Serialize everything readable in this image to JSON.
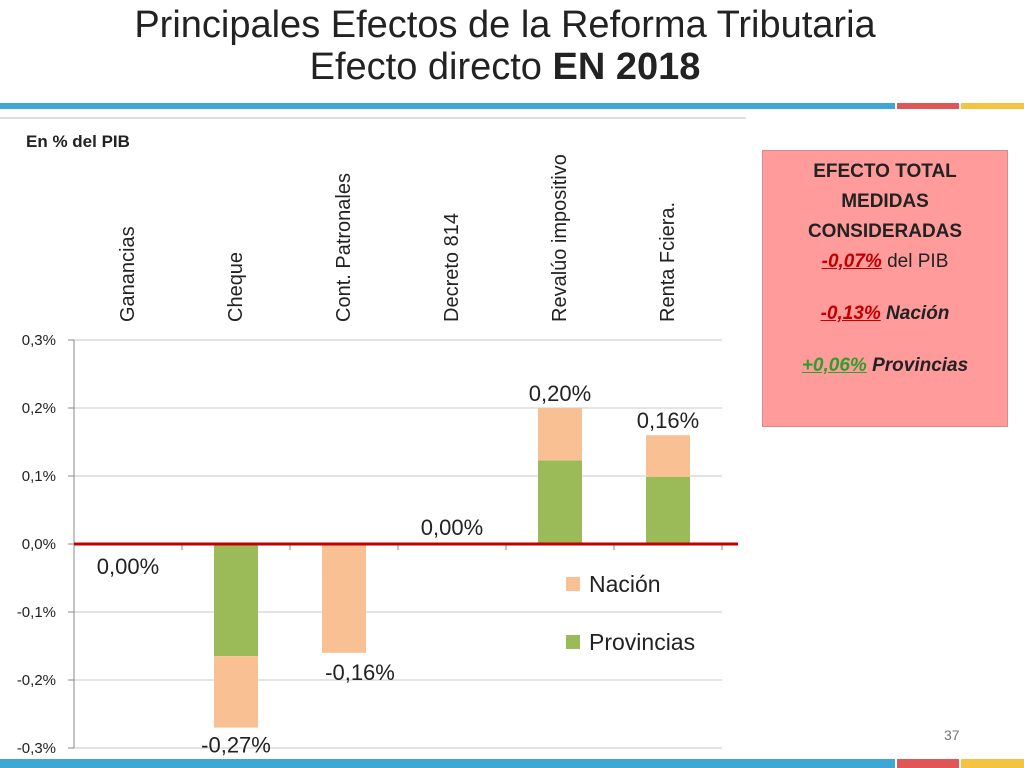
{
  "header": {
    "title_line1": "Principales Efectos de la Reforma Tributaria",
    "title_line2_prefix": "Efecto directo ",
    "title_line2_bold": "EN 2018"
  },
  "unit_label": "En % del PIB",
  "colors": {
    "nacion": "#f9c193",
    "provincias": "#9bbb59",
    "zero_line": "#c00000",
    "deco_blue": "#3fa7d6",
    "deco_red": "#e05555",
    "deco_yellow": "#f5c342"
  },
  "chart_data": {
    "type": "bar",
    "stacked": true,
    "categories": [
      "Ganancias",
      "Cheque",
      "Cont. Patronales",
      "Decreto 814",
      "Revalúo impositivo",
      "Renta Fciera."
    ],
    "series": [
      {
        "name": "Provincias",
        "values": [
          0.0,
          -0.165,
          0.0,
          0.0,
          0.123,
          0.099
        ]
      },
      {
        "name": "Nación",
        "values": [
          0.0,
          -0.105,
          -0.16,
          0.0,
          0.077,
          0.061
        ]
      }
    ],
    "totals_labels": [
      "0,00%",
      "-0,27%",
      "-0,16%",
      "0,00%",
      "0,20%",
      "0,16%"
    ],
    "totals": [
      0.0,
      -0.27,
      -0.16,
      0.0,
      0.2,
      0.16
    ],
    "ylim": [
      -0.3,
      0.3
    ],
    "yticks": [
      0.3,
      0.2,
      0.1,
      0.0,
      -0.1,
      -0.2,
      -0.3
    ],
    "ytick_labels": [
      "0,3%",
      "0,2%",
      "0,1%",
      "0,0%",
      "-0,1%",
      "-0,2%",
      "-0,3%"
    ],
    "legend": [
      "Nación",
      "Provincias"
    ],
    "legend_position": "bottom-right",
    "grid": true
  },
  "total_box": {
    "head1": "EFECTO TOTAL",
    "head2": "MEDIDAS",
    "head3": "CONSIDERADAS",
    "pib_value": "-0,07%",
    "pib_label": " del PIB",
    "nacion_value": "-0,13%",
    "nacion_label": " Nación",
    "prov_value": "+0,06%",
    "prov_label": " Provincias"
  },
  "page_number": "37"
}
